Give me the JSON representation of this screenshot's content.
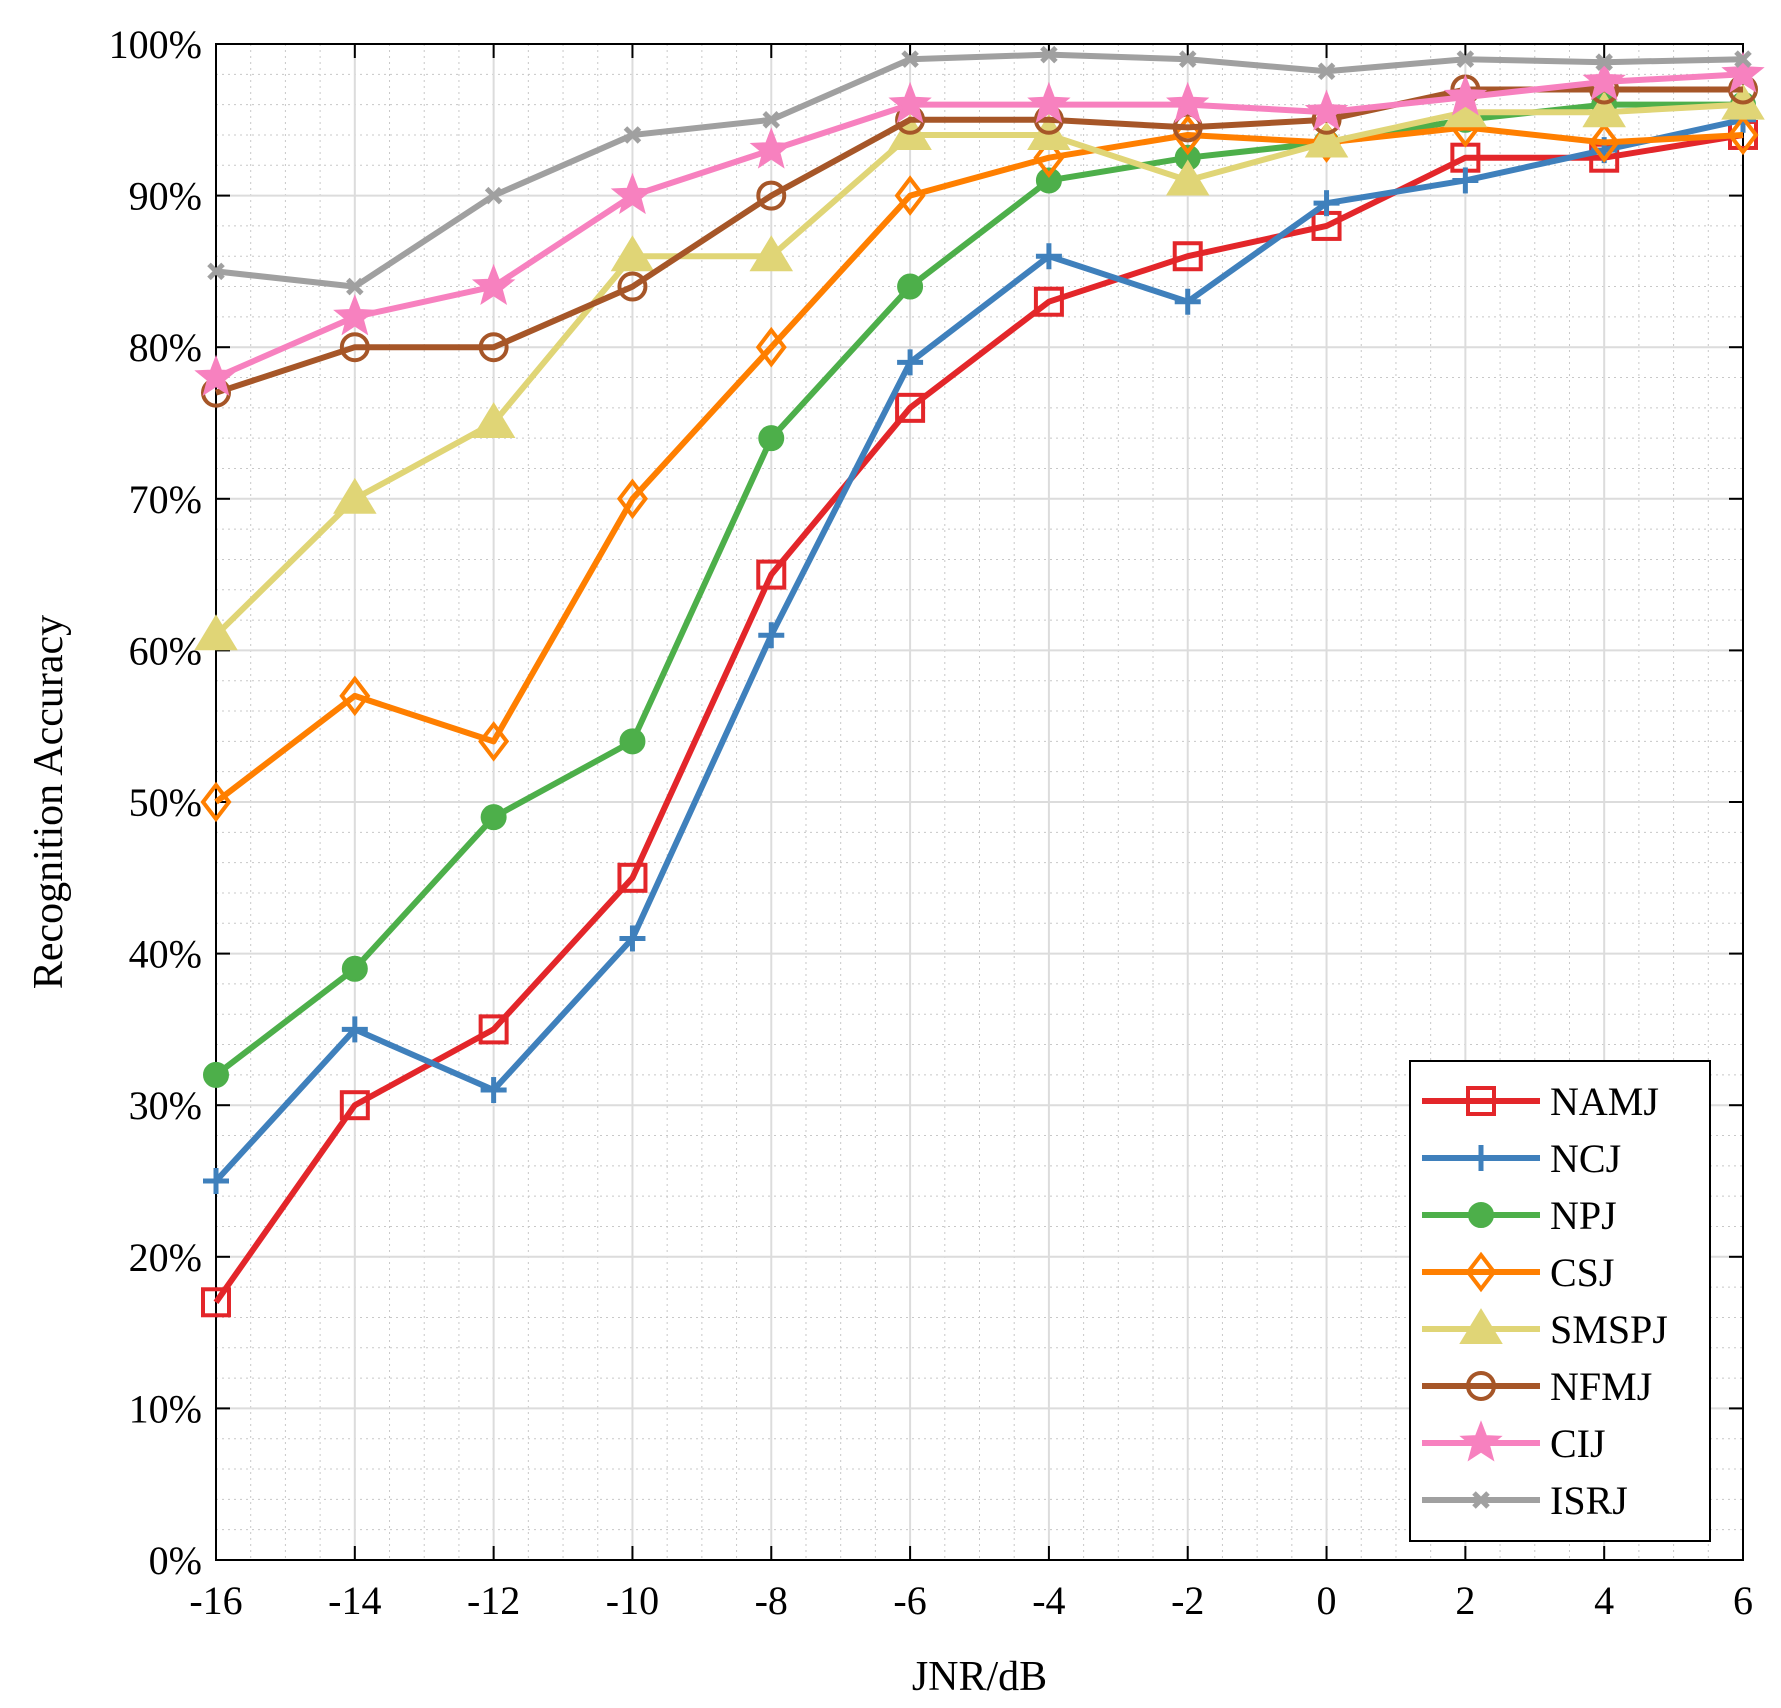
{
  "chart_data": {
    "type": "line",
    "title": "",
    "xlabel": "JNR/dB",
    "ylabel": "Recognition Accuracy",
    "x": [
      -16,
      -14,
      -12,
      -10,
      -8,
      -6,
      -4,
      -2,
      0,
      2,
      4,
      6
    ],
    "x_ticks": [
      "-16",
      "-14",
      "-12",
      "-10",
      "-8",
      "-6",
      "-4",
      "-2",
      "0",
      "2",
      "4",
      "6"
    ],
    "y_ticks": [
      "0%",
      "10%",
      "20%",
      "30%",
      "40%",
      "50%",
      "60%",
      "70%",
      "80%",
      "90%",
      "100%"
    ],
    "xlim": [
      -16,
      6
    ],
    "ylim": [
      0,
      100
    ],
    "y_unit": "%",
    "grid": true,
    "minor_grid": true,
    "legend_position": "bottom-right",
    "series": [
      {
        "name": "NAMJ",
        "color": "#e3262a",
        "marker": "square",
        "values": [
          17,
          30,
          35,
          45,
          65,
          76,
          83,
          86,
          88,
          92.5,
          92.5,
          94
        ]
      },
      {
        "name": "NCJ",
        "color": "#3f80bc",
        "marker": "plus",
        "values": [
          25,
          35,
          31,
          41,
          61,
          79,
          86,
          83,
          89.5,
          91,
          93,
          95
        ]
      },
      {
        "name": "NPJ",
        "color": "#4daf4a",
        "marker": "circle",
        "values": [
          32,
          39,
          49,
          54,
          74,
          84,
          91,
          92.5,
          93.5,
          95,
          96,
          96
        ]
      },
      {
        "name": "CSJ",
        "color": "#ff7f00",
        "marker": "diamond",
        "values": [
          50,
          57,
          54,
          70,
          80,
          90,
          92.5,
          94,
          93.5,
          94.5,
          93.5,
          94
        ]
      },
      {
        "name": "SMSPJ",
        "color": "#e0d576",
        "marker": "triangle",
        "values": [
          61,
          70,
          75,
          86,
          86,
          94,
          94,
          91,
          93.5,
          95.5,
          95.5,
          96
        ]
      },
      {
        "name": "NFMJ",
        "color": "#a65628",
        "marker": "circle-open",
        "values": [
          77,
          80,
          80,
          84,
          90,
          95,
          95,
          94.5,
          95,
          97,
          97,
          97
        ]
      },
      {
        "name": "CIJ",
        "color": "#f781bf",
        "marker": "star",
        "values": [
          78,
          82,
          84,
          90,
          93,
          96,
          96,
          96,
          95.5,
          96.5,
          97.5,
          98
        ]
      },
      {
        "name": "ISRJ",
        "color": "#a0a0a0",
        "marker": "x-small",
        "values": [
          85,
          84,
          90,
          94,
          95,
          99,
          99.3,
          99,
          98.2,
          99,
          98.8,
          99
        ]
      }
    ]
  }
}
